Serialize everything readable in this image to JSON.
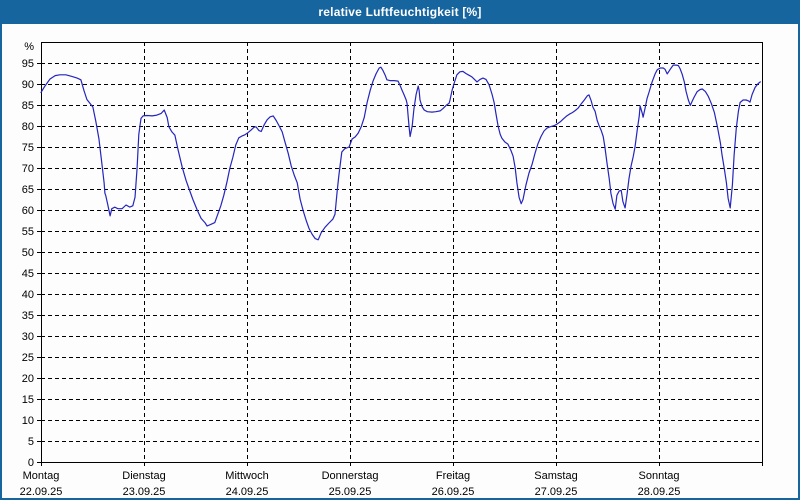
{
  "window": {
    "title": "relative Luftfeuchtigkeit [%]"
  },
  "colors": {
    "titlebar": "#17659e",
    "window_border": "#17659e",
    "plot_background": "#fdfdfd",
    "grid": "#000000",
    "axis": "#000000",
    "line": "#2525bd",
    "text": "#000000",
    "title_text": "#ffffff"
  },
  "chart_data": {
    "type": "line",
    "title": "relative Luftfeuchtigkeit [%]",
    "ylabel": "%",
    "xlabel": "",
    "ylim": [
      0,
      100
    ],
    "xlim_hours": [
      0,
      168
    ],
    "grid": "dashed horizontal every 5%, dashed vertical at each day boundary",
    "legend": "none",
    "yticks": [
      0,
      5,
      10,
      15,
      20,
      25,
      30,
      35,
      40,
      45,
      50,
      55,
      60,
      65,
      70,
      75,
      80,
      85,
      90,
      95
    ],
    "x_categories": [
      {
        "label": "Montag",
        "date": "22.09.25",
        "hour": 0
      },
      {
        "label": "Dienstag",
        "date": "23.09.25",
        "hour": 24
      },
      {
        "label": "Mittwoch",
        "date": "24.09.25",
        "hour": 48
      },
      {
        "label": "Donnerstag",
        "date": "25.09.25",
        "hour": 72
      },
      {
        "label": "Freitag",
        "date": "26.09.25",
        "hour": 96
      },
      {
        "label": "Samstag",
        "date": "27.09.25",
        "hour": 120
      },
      {
        "label": "Sonntag",
        "date": "28.09.25",
        "hour": 144
      }
    ],
    "series": [
      {
        "name": "relative Luftfeuchtigkeit",
        "unit": "%",
        "color": "#2525bd",
        "points": [
          [
            0,
            88
          ],
          [
            0.9,
            89.5
          ],
          [
            2.1,
            91.2
          ],
          [
            3.3,
            92
          ],
          [
            4.4,
            92.2
          ],
          [
            5.8,
            92.2
          ],
          [
            7.2,
            91.8
          ],
          [
            8.4,
            91.4
          ],
          [
            9.3,
            91
          ],
          [
            10,
            88.5
          ],
          [
            10.7,
            86.3
          ],
          [
            11.4,
            85.4
          ],
          [
            12.1,
            84.5
          ],
          [
            12.8,
            81
          ],
          [
            13.5,
            77
          ],
          [
            14.2,
            71
          ],
          [
            14.7,
            66.5
          ],
          [
            14.9,
            64
          ],
          [
            15.1,
            63.4
          ],
          [
            15.6,
            61
          ],
          [
            16.1,
            58.6
          ],
          [
            16.5,
            60.3
          ],
          [
            17.2,
            60.7
          ],
          [
            17.9,
            60.3
          ],
          [
            18.9,
            60.3
          ],
          [
            19.8,
            61.2
          ],
          [
            20.7,
            60.7
          ],
          [
            21.4,
            61
          ],
          [
            21.9,
            63
          ],
          [
            22.4,
            70
          ],
          [
            22.8,
            78
          ],
          [
            23.3,
            81.8
          ],
          [
            23.8,
            82.4
          ],
          [
            24.7,
            82.5
          ],
          [
            25.9,
            82.4
          ],
          [
            27,
            82.6
          ],
          [
            28,
            83
          ],
          [
            28.7,
            83.8
          ],
          [
            29.4,
            82
          ],
          [
            29.8,
            79.8
          ],
          [
            30.5,
            78.6
          ],
          [
            31.2,
            77.8
          ],
          [
            31.9,
            74.5
          ],
          [
            32.9,
            70.2
          ],
          [
            33.8,
            67
          ],
          [
            34.5,
            65
          ],
          [
            35.4,
            62.5
          ],
          [
            36.4,
            60
          ],
          [
            37.3,
            58
          ],
          [
            38.2,
            57
          ],
          [
            38.7,
            56.2
          ],
          [
            39.6,
            56.6
          ],
          [
            40.5,
            57
          ],
          [
            41.2,
            59
          ],
          [
            41.9,
            61
          ],
          [
            42.6,
            63.5
          ],
          [
            43.3,
            66.5
          ],
          [
            44,
            69.9
          ],
          [
            44.7,
            72.5
          ],
          [
            45.4,
            75.5
          ],
          [
            46.1,
            77.2
          ],
          [
            46.8,
            77.6
          ],
          [
            47.5,
            77.9
          ],
          [
            48.2,
            78.4
          ],
          [
            48.9,
            79
          ],
          [
            49.6,
            79.7
          ],
          [
            50.1,
            79.8
          ],
          [
            50.8,
            78.9
          ],
          [
            51.3,
            78.7
          ],
          [
            52,
            80.3
          ],
          [
            52.7,
            81.5
          ],
          [
            53.4,
            82.2
          ],
          [
            54.1,
            82.4
          ],
          [
            54.8,
            81.3
          ],
          [
            55.5,
            80
          ],
          [
            56.2,
            78.6
          ],
          [
            56.9,
            76
          ],
          [
            57.6,
            73.5
          ],
          [
            58.3,
            70.5
          ],
          [
            59,
            68.3
          ],
          [
            59.7,
            66.5
          ],
          [
            60.4,
            62.5
          ],
          [
            61.1,
            59.8
          ],
          [
            61.8,
            57.5
          ],
          [
            62.5,
            55.5
          ],
          [
            63.2,
            54.2
          ],
          [
            63.9,
            53.2
          ],
          [
            64.6,
            52.9
          ],
          [
            65.3,
            54.6
          ],
          [
            66.2,
            55.9
          ],
          [
            67.1,
            56.9
          ],
          [
            68,
            57.8
          ],
          [
            68.5,
            59
          ],
          [
            69,
            64.3
          ],
          [
            69.4,
            68.1
          ],
          [
            70.1,
            73.8
          ],
          [
            70.8,
            74.6
          ],
          [
            71.8,
            75
          ],
          [
            72.5,
            76.9
          ],
          [
            73.2,
            77.4
          ],
          [
            73.9,
            78.3
          ],
          [
            74.6,
            79.8
          ],
          [
            75.3,
            82
          ],
          [
            76,
            85.7
          ],
          [
            76.7,
            88.5
          ],
          [
            77.4,
            90.8
          ],
          [
            78.1,
            92.5
          ],
          [
            78.8,
            93.8
          ],
          [
            79.2,
            94
          ],
          [
            79.7,
            93.2
          ],
          [
            80.2,
            92.1
          ],
          [
            80.6,
            91
          ],
          [
            81.3,
            90.8
          ],
          [
            82.3,
            90.8
          ],
          [
            83.2,
            90.7
          ],
          [
            83.7,
            89.6
          ],
          [
            84.1,
            88.6
          ],
          [
            84.6,
            87.4
          ],
          [
            85.1,
            86.2
          ],
          [
            85.3,
            85.3
          ],
          [
            85.5,
            83
          ],
          [
            85.8,
            79.5
          ],
          [
            86,
            77.5
          ],
          [
            86.5,
            80
          ],
          [
            86.9,
            84
          ],
          [
            87.4,
            87.5
          ],
          [
            87.9,
            89.5
          ],
          [
            88.1,
            88.5
          ],
          [
            88.3,
            86.2
          ],
          [
            88.8,
            84.6
          ],
          [
            89.3,
            83.8
          ],
          [
            90,
            83.4
          ],
          [
            91.1,
            83.3
          ],
          [
            92,
            83.4
          ],
          [
            93,
            83.6
          ],
          [
            93.7,
            84.2
          ],
          [
            94.4,
            84.9
          ],
          [
            95.1,
            85.4
          ],
          [
            95.3,
            86.2
          ],
          [
            95.8,
            88.5
          ],
          [
            96.2,
            90
          ],
          [
            96.9,
            92.2
          ],
          [
            97.6,
            92.9
          ],
          [
            98.3,
            93
          ],
          [
            99,
            92.5
          ],
          [
            99.7,
            92.1
          ],
          [
            100.4,
            91.7
          ],
          [
            101.1,
            91
          ],
          [
            101.6,
            90.5
          ],
          [
            102.3,
            91.1
          ],
          [
            103,
            91.4
          ],
          [
            103.7,
            91.1
          ],
          [
            104.4,
            89.8
          ],
          [
            105.1,
            87.5
          ],
          [
            105.6,
            85.5
          ],
          [
            106,
            83
          ],
          [
            106.5,
            80
          ],
          [
            107,
            78
          ],
          [
            107.4,
            77.1
          ],
          [
            108.1,
            76.2
          ],
          [
            108.8,
            75.7
          ],
          [
            109.5,
            74.2
          ],
          [
            110,
            72.8
          ],
          [
            110.5,
            70
          ],
          [
            110.9,
            66.5
          ],
          [
            111.4,
            63
          ],
          [
            111.9,
            61.5
          ],
          [
            112.3,
            62.5
          ],
          [
            113,
            66
          ],
          [
            113.7,
            68.8
          ],
          [
            114.4,
            70.8
          ],
          [
            115.1,
            73.5
          ],
          [
            115.8,
            75.8
          ],
          [
            116.5,
            77.5
          ],
          [
            117.2,
            78.8
          ],
          [
            117.9,
            79.5
          ],
          [
            118.6,
            79.8
          ],
          [
            119.6,
            80.1
          ],
          [
            120.3,
            80.5
          ],
          [
            121,
            81
          ],
          [
            121.7,
            81.7
          ],
          [
            122.4,
            82.3
          ],
          [
            123.1,
            82.8
          ],
          [
            123.8,
            83.2
          ],
          [
            124.5,
            83.7
          ],
          [
            125.2,
            84.3
          ],
          [
            125.9,
            85.3
          ],
          [
            126.6,
            86.2
          ],
          [
            127.3,
            87.2
          ],
          [
            127.7,
            87.4
          ],
          [
            128.2,
            86
          ],
          [
            128.6,
            84.5
          ],
          [
            129.1,
            83.5
          ],
          [
            129.6,
            81.3
          ],
          [
            130,
            80.2
          ],
          [
            130.5,
            79
          ],
          [
            131,
            77.5
          ],
          [
            131.4,
            75
          ],
          [
            131.9,
            71
          ],
          [
            132.4,
            67.5
          ],
          [
            132.8,
            64
          ],
          [
            133.3,
            61.5
          ],
          [
            133.8,
            60.2
          ],
          [
            134.2,
            63.5
          ],
          [
            134.7,
            64.5
          ],
          [
            135.2,
            64.7
          ],
          [
            135.6,
            62
          ],
          [
            136.1,
            60.5
          ],
          [
            136.6,
            64
          ],
          [
            137,
            67.5
          ],
          [
            137.5,
            70.5
          ],
          [
            138,
            72.8
          ],
          [
            138.4,
            75
          ],
          [
            138.9,
            78.8
          ],
          [
            139.4,
            82.5
          ],
          [
            139.6,
            84.8
          ],
          [
            140.1,
            83
          ],
          [
            140.3,
            82.1
          ],
          [
            140.8,
            84.5
          ],
          [
            141.2,
            86.5
          ],
          [
            141.7,
            88.1
          ],
          [
            142.4,
            90.5
          ],
          [
            143.1,
            92.4
          ],
          [
            143.6,
            93.4
          ],
          [
            144.3,
            93.8
          ],
          [
            145,
            93.8
          ],
          [
            145.4,
            93.5
          ],
          [
            145.9,
            92.4
          ],
          [
            146.6,
            93.5
          ],
          [
            147.3,
            94.5
          ],
          [
            148,
            94.5
          ],
          [
            148.5,
            94.4
          ],
          [
            148.9,
            93.7
          ],
          [
            149.4,
            92.3
          ],
          [
            149.9,
            90.5
          ],
          [
            150.3,
            88.3
          ],
          [
            150.8,
            86.3
          ],
          [
            151.3,
            84.9
          ],
          [
            151.7,
            85.8
          ],
          [
            152.2,
            86.9
          ],
          [
            152.9,
            88.2
          ],
          [
            153.6,
            88.7
          ],
          [
            154.1,
            88.8
          ],
          [
            154.8,
            88.2
          ],
          [
            155.5,
            87
          ],
          [
            156.2,
            85.3
          ],
          [
            156.9,
            83.2
          ],
          [
            157.6,
            79.8
          ],
          [
            158.3,
            76
          ],
          [
            158.7,
            73
          ],
          [
            159.2,
            70
          ],
          [
            159.7,
            66.5
          ],
          [
            160.1,
            62.8
          ],
          [
            160.6,
            60.5
          ],
          [
            161.1,
            66
          ],
          [
            161.5,
            73
          ],
          [
            162,
            79.5
          ],
          [
            162.5,
            83.5
          ],
          [
            162.9,
            85.6
          ],
          [
            163.6,
            86.2
          ],
          [
            164.3,
            86.2
          ],
          [
            164.8,
            86
          ],
          [
            165.2,
            85.7
          ],
          [
            165.7,
            87.5
          ],
          [
            166.4,
            89.2
          ],
          [
            167.1,
            90.1
          ],
          [
            167.6,
            90.5
          ]
        ]
      }
    ]
  }
}
